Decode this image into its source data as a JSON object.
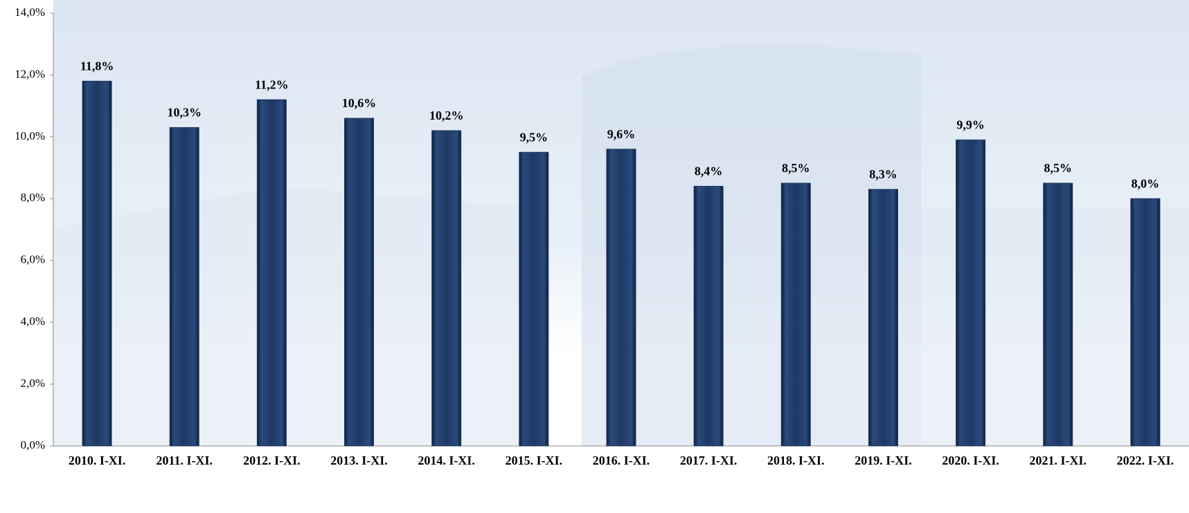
{
  "chart_data": {
    "type": "bar",
    "categories": [
      "2010. I-XI.",
      "2011. I-XI.",
      "2012. I-XI.",
      "2013. I-XI.",
      "2014. I-XI.",
      "2015. I-XI.",
      "2016. I-XI.",
      "2017. I-XI.",
      "2018. I-XI.",
      "2019. I-XI.",
      "2020. I-XI.",
      "2021. I-XI.",
      "2022. I-XI."
    ],
    "values": [
      11.8,
      10.3,
      11.2,
      10.6,
      10.2,
      9.5,
      9.6,
      8.4,
      8.5,
      8.3,
      9.9,
      8.5,
      8.0
    ],
    "value_labels": [
      "11,8%",
      "10,3%",
      "11,2%",
      "10,6%",
      "10,2%",
      "9,5%",
      "9,6%",
      "8,4%",
      "8,5%",
      "8,3%",
      "9,9%",
      "8,5%",
      "8,0%"
    ],
    "color": "#1f3864",
    "ylim": [
      0,
      14
    ],
    "yticks": [
      {
        "value": 0,
        "label": "0,0%"
      },
      {
        "value": 2,
        "label": "2,0%"
      },
      {
        "value": 4,
        "label": "4,0%"
      },
      {
        "value": 6,
        "label": "6,0%"
      },
      {
        "value": 8,
        "label": "8,0%"
      },
      {
        "value": 10,
        "label": "10,0%"
      },
      {
        "value": 12,
        "label": "12,0%"
      },
      {
        "value": 14,
        "label": "14,0%"
      }
    ],
    "grid": false
  }
}
